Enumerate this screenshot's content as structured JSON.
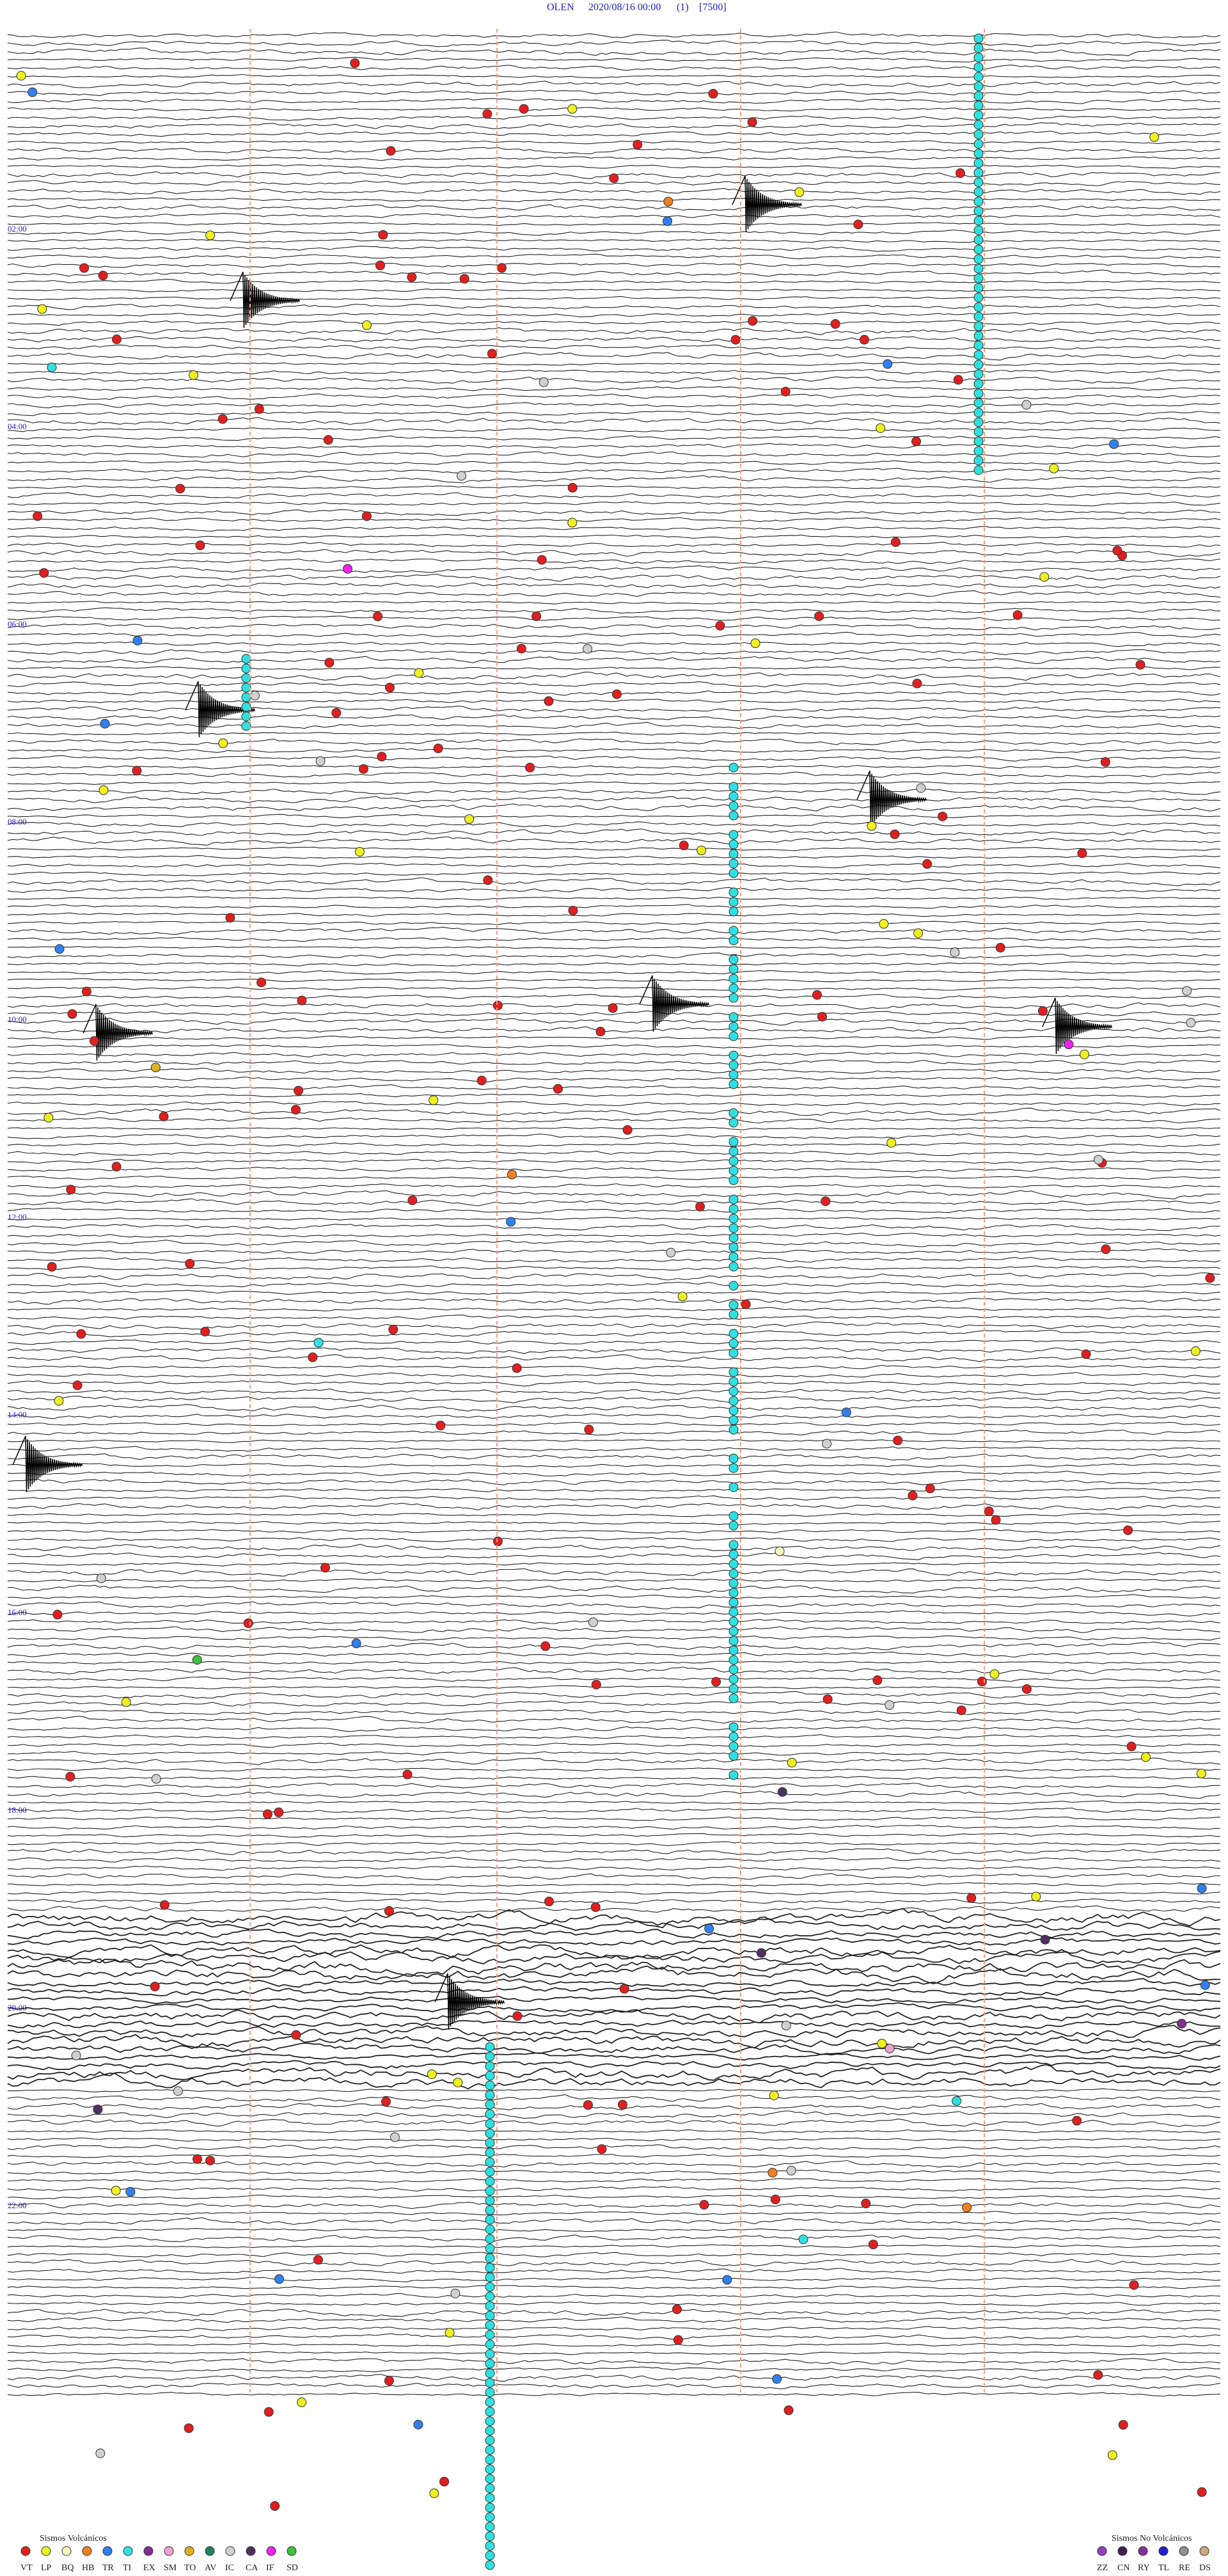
{
  "header": {
    "station": "OLEN",
    "datetime": "2020/08/16 00:00",
    "channel": "(1)",
    "scale": "[7500]"
  },
  "time_labels": [
    "02:00",
    "04:00",
    "06:00",
    "08:00",
    "10:00",
    "12:00",
    "14:00",
    "16:00",
    "18:00",
    "20:00",
    "22:00"
  ],
  "legend": {
    "volcanic": {
      "title": "Sismos Volcánicos",
      "items": [
        {
          "code": "VT",
          "color": "#e02020"
        },
        {
          "code": "LP",
          "color": "#f0f020"
        },
        {
          "code": "BQ",
          "color": "#fff8c0"
        },
        {
          "code": "HB",
          "color": "#f08020"
        },
        {
          "code": "TR",
          "color": "#3080f0"
        },
        {
          "code": "TI",
          "color": "#30e0e0"
        },
        {
          "code": "EX",
          "color": "#803090"
        },
        {
          "code": "SM",
          "color": "#f0a0d0"
        },
        {
          "code": "TO",
          "color": "#e0b020"
        },
        {
          "code": "AV",
          "color": "#208060"
        },
        {
          "code": "IC",
          "color": "#d0d0d0"
        },
        {
          "code": "CA",
          "color": "#503060"
        },
        {
          "code": "IF",
          "color": "#f020f0"
        },
        {
          "code": "SD",
          "color": "#40c040"
        }
      ]
    },
    "non_volcanic": {
      "title": "Sismos No Volcánicos",
      "items": [
        {
          "code": "ZZ",
          "color": "#9040c0"
        },
        {
          "code": "CN",
          "color": "#402050"
        },
        {
          "code": "RY",
          "color": "#8030a0"
        },
        {
          "code": "TL",
          "color": "#2020d0"
        },
        {
          "code": "RE",
          "color": "#909090"
        },
        {
          "code": "DS",
          "color": "#d0a880"
        }
      ]
    }
  }
}
